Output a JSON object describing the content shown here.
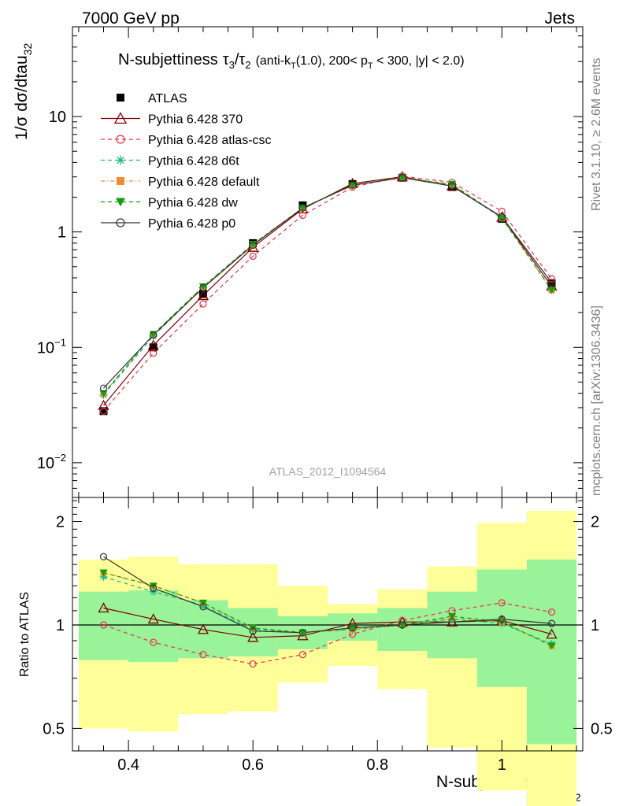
{
  "header": {
    "left": "7000 GeV pp",
    "right": "Jets"
  },
  "side_labels": {
    "rivet": "Rivet 3.1.10, ≥ 2.6M events",
    "mcplots": "mcplots.cern.ch [arXiv:1306.3436]"
  },
  "watermark": "ATLAS_2012_I1094564",
  "title": {
    "main": "N-subjettiness",
    "tau3": "τ",
    "sub3": "3",
    "slash": "/",
    "tau2": "τ",
    "sub2": "2",
    "cut_a": "(anti-k",
    "cut_sub_t1": "T",
    "cut_b": "(1.0), 200< p",
    "cut_sub_t2": "T",
    "cut_c": " < 300, |y| < 2.0)"
  },
  "main_ylabel": {
    "text": "1/σ dσ/dtau",
    "sub": "32"
  },
  "ratio_ylabel": "Ratio to ATLAS",
  "xlabel": {
    "text": "N-subjettiness tau",
    "sub": "32"
  },
  "chart_data": {
    "type": "line",
    "x": [
      0.36,
      0.44,
      0.52,
      0.6,
      0.68,
      0.76,
      0.84,
      0.92,
      1.0,
      1.08
    ],
    "bin_edges": [
      0.32,
      0.4,
      0.48,
      0.56,
      0.64,
      0.72,
      0.8,
      0.88,
      0.96,
      1.04,
      1.12
    ],
    "main_axis": {
      "scale": "log",
      "ylim": [
        0.005,
        60
      ],
      "y_ticks": [
        {
          "value": 0.01,
          "label": "10",
          "sup": "−2"
        },
        {
          "value": 0.1,
          "label": "10",
          "sup": "−1"
        },
        {
          "value": 1,
          "label": "1",
          "sup": ""
        },
        {
          "value": 10,
          "label": "10",
          "sup": ""
        }
      ]
    },
    "ratio_axis": {
      "scale": "log",
      "ylim": [
        0.43,
        2.35
      ],
      "y_ticks": [
        {
          "value": 0.5,
          "label": "0.5"
        },
        {
          "value": 1,
          "label": "1"
        },
        {
          "value": 2,
          "label": "2"
        }
      ]
    },
    "xlim": [
      0.31,
      1.13
    ],
    "x_ticks": [
      {
        "value": 0.4,
        "label": "0.4"
      },
      {
        "value": 0.6,
        "label": "0.6"
      },
      {
        "value": 0.8,
        "label": "0.8"
      },
      {
        "value": 1.0,
        "label": "1"
      }
    ],
    "reference": {
      "name": "ATLAS",
      "values": [
        0.028,
        0.1,
        0.29,
        0.8,
        1.7,
        2.6,
        2.95,
        2.45,
        1.3,
        0.36
      ],
      "band_green": [
        [
          0.79,
          1.25
        ],
        [
          0.78,
          1.26
        ],
        [
          0.8,
          1.18
        ],
        [
          0.81,
          1.12
        ],
        [
          0.85,
          1.06
        ],
        [
          0.9,
          1.08
        ],
        [
          0.84,
          1.12
        ],
        [
          0.8,
          1.25
        ],
        [
          0.66,
          1.45
        ],
        [
          0.45,
          1.55
        ]
      ],
      "band_yellow": [
        [
          0.5,
          1.55
        ],
        [
          0.49,
          1.58
        ],
        [
          0.55,
          1.5
        ],
        [
          0.56,
          1.5
        ],
        [
          0.68,
          1.3
        ],
        [
          0.76,
          1.15
        ],
        [
          0.65,
          1.27
        ],
        [
          0.44,
          1.48
        ],
        [
          0.33,
          1.98
        ],
        [
          0.27,
          2.15
        ]
      ]
    },
    "series": [
      {
        "name": "Pythia 6.428 370",
        "color": "#800000",
        "dash": "",
        "marker": "triangle-open",
        "ratio": [
          1.12,
          1.04,
          0.97,
          0.92,
          0.93,
          1.01,
          1.02,
          1.02,
          1.03,
          0.94
        ]
      },
      {
        "name": "Pythia 6.428 atlas-csc",
        "color": "#e8334d",
        "dash": "5,4",
        "marker": "circle-open",
        "ratio": [
          1.0,
          0.89,
          0.82,
          0.77,
          0.82,
          0.94,
          1.03,
          1.1,
          1.16,
          1.09
        ]
      },
      {
        "name": "Pythia 6.428 d6t",
        "color": "#1ab886",
        "dash": "5,4",
        "marker": "star",
        "ratio": [
          1.38,
          1.25,
          1.14,
          0.97,
          0.95,
          0.97,
          1.0,
          1.04,
          1.01,
          0.88
        ]
      },
      {
        "name": "Pythia 6.428 default",
        "color": "#f08c30",
        "dash": "5,3,1,3",
        "marker": "square",
        "ratio": [
          1.42,
          1.3,
          1.16,
          0.98,
          0.95,
          0.97,
          1.0,
          1.05,
          1.02,
          0.87
        ]
      },
      {
        "name": "Pythia 6.428 dw",
        "color": "#12a012",
        "dash": "5,4",
        "marker": "triangle-down",
        "ratio": [
          1.42,
          1.3,
          1.16,
          0.98,
          0.95,
          0.98,
          1.0,
          1.06,
          1.02,
          0.87
        ]
      },
      {
        "name": "Pythia 6.428 p0",
        "color": "#333333",
        "dash": "",
        "marker": "circle-open",
        "ratio": [
          1.58,
          1.28,
          1.13,
          0.96,
          0.95,
          0.98,
          1.0,
          1.02,
          1.04,
          1.01
        ]
      }
    ]
  }
}
